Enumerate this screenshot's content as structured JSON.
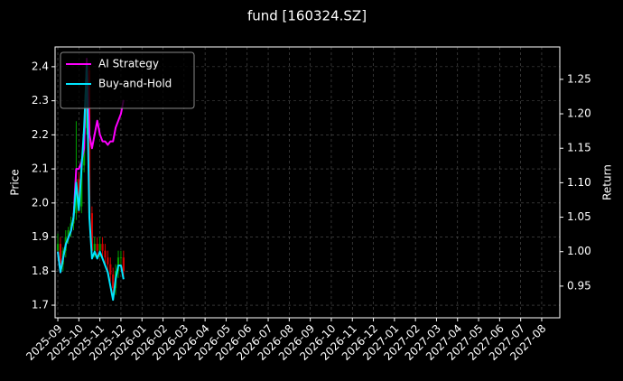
{
  "chart_data": {
    "type": "candlestick",
    "title": "fund [160324.SZ]",
    "y_label": "Price",
    "y2_label": "Return",
    "x": [
      0,
      0.125,
      0.25,
      0.375,
      0.5,
      0.625,
      0.75,
      0.875,
      1,
      1.125,
      1.25,
      1.375,
      1.5,
      1.625,
      1.75,
      1.875,
      2,
      2.125,
      2.25,
      2.375,
      2.5,
      2.625,
      2.75,
      2.875,
      3,
      3.125
    ],
    "open": [
      1.86,
      1.88,
      1.82,
      1.86,
      1.9,
      1.92,
      1.94,
      1.97,
      2.07,
      1.99,
      2.11,
      2.22,
      2.39,
      1.97,
      1.86,
      1.88,
      1.86,
      1.88,
      1.86,
      1.84,
      1.82,
      1.79,
      1.75,
      1.8,
      1.84,
      1.84
    ],
    "high": [
      1.91,
      1.9,
      1.87,
      1.92,
      1.93,
      1.96,
      1.99,
      2.24,
      2.09,
      2.13,
      2.24,
      2.42,
      2.4,
      1.99,
      1.9,
      1.9,
      1.9,
      1.9,
      1.88,
      1.86,
      1.84,
      1.81,
      1.82,
      1.86,
      1.86,
      1.86
    ],
    "low": [
      1.84,
      1.8,
      1.8,
      1.84,
      1.88,
      1.9,
      1.92,
      1.95,
      1.97,
      1.97,
      2.09,
      2.2,
      1.95,
      1.84,
      1.84,
      1.84,
      1.84,
      1.84,
      1.82,
      1.8,
      1.77,
      1.73,
      1.73,
      1.78,
      1.82,
      1.78
    ],
    "close": [
      1.88,
      1.82,
      1.86,
      1.9,
      1.92,
      1.94,
      1.97,
      2.07,
      1.99,
      2.11,
      2.22,
      2.39,
      1.97,
      1.86,
      1.88,
      1.86,
      1.88,
      1.86,
      1.84,
      1.82,
      1.79,
      1.75,
      1.8,
      1.84,
      1.84,
      1.8
    ],
    "up_color": "#00a000",
    "down_color": "#d00000",
    "series": [
      {
        "name": "AI Strategy",
        "color": "#ff00ff",
        "axis": "y2",
        "values": [
          1.0,
          0.97,
          0.99,
          1.01,
          1.02,
          1.03,
          1.05,
          1.12,
          1.12,
          1.13,
          1.15,
          1.28,
          1.17,
          1.15,
          1.17,
          1.19,
          1.17,
          1.16,
          1.16,
          1.155,
          1.16,
          1.16,
          1.18,
          1.19,
          1.2,
          1.22
        ]
      },
      {
        "name": "Buy-and-Hold",
        "color": "#00e5ff",
        "axis": "y2",
        "values": [
          1.0,
          0.97,
          0.99,
          1.01,
          1.02,
          1.03,
          1.05,
          1.1,
          1.06,
          1.12,
          1.18,
          1.27,
          1.05,
          0.99,
          1.0,
          0.99,
          1.0,
          0.99,
          0.98,
          0.97,
          0.95,
          0.93,
          0.96,
          0.98,
          0.98,
          0.96
        ]
      }
    ],
    "xlim": [
      -0.13,
      23.86
    ],
    "xticks": [
      {
        "value": 0,
        "label": "2025-09"
      },
      {
        "value": 1,
        "label": "2025-10"
      },
      {
        "value": 2,
        "label": "2025-11"
      },
      {
        "value": 3,
        "label": "2025-12"
      },
      {
        "value": 4,
        "label": "2026-01"
      },
      {
        "value": 5,
        "label": "2026-02"
      },
      {
        "value": 6,
        "label": "2026-03"
      },
      {
        "value": 7,
        "label": "2026-04"
      },
      {
        "value": 8,
        "label": "2026-05"
      },
      {
        "value": 9,
        "label": "2026-06"
      },
      {
        "value": 10,
        "label": "2026-07"
      },
      {
        "value": 11,
        "label": "2026-08"
      },
      {
        "value": 12,
        "label": "2026-09"
      },
      {
        "value": 13,
        "label": "2026-10"
      },
      {
        "value": 14,
        "label": "2026-11"
      },
      {
        "value": 15,
        "label": "2026-12"
      },
      {
        "value": 16,
        "label": "2027-01"
      },
      {
        "value": 17,
        "label": "2027-02"
      },
      {
        "value": 18,
        "label": "2027-03"
      },
      {
        "value": 19,
        "label": "2027-04"
      },
      {
        "value": 20,
        "label": "2027-05"
      },
      {
        "value": 21,
        "label": "2027-06"
      },
      {
        "value": 22,
        "label": "2027-07"
      },
      {
        "value": 23,
        "label": "2027-08"
      }
    ],
    "ylim": [
      1.663,
      2.458
    ],
    "yticks": [
      1.7,
      1.8,
      1.9,
      {
        "value": 2,
        "label": "2.0"
      },
      2.1,
      2.2,
      2.3,
      2.4
    ],
    "y2lim": [
      0.904,
      1.297
    ],
    "y2ticks": [
      0.95,
      {
        "value": 1,
        "label": "1.00"
      },
      1.05,
      {
        "value": 1.1,
        "label": "1.10"
      },
      1.15,
      {
        "value": 1.2,
        "label": "1.20"
      },
      1.25
    ],
    "grid": true,
    "legend": "upper left"
  }
}
